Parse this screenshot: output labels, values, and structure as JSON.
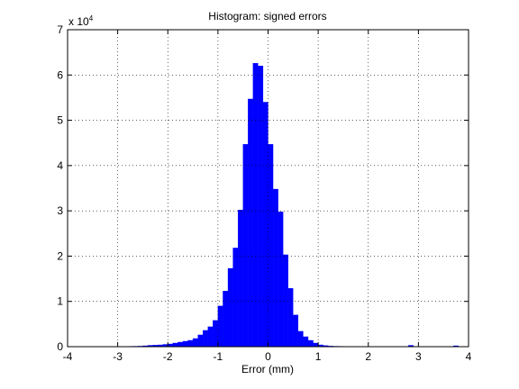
{
  "chart_data": {
    "type": "histogram",
    "title": "Histogram: signed errors",
    "x_label": "Error (mm)",
    "y_multiplier_base": "x 10",
    "y_multiplier_exponent": "4",
    "color": "#0000ff",
    "grid": true,
    "bins": [
      -4.0,
      -3.9,
      -3.8,
      -3.7,
      -3.6,
      -3.5,
      -3.4,
      -3.3,
      -3.2,
      -3.1,
      -3.0,
      -2.9,
      -2.8,
      -2.7,
      -2.6,
      -2.5,
      -2.4,
      -2.3,
      -2.2,
      -2.1,
      -2.0,
      -1.9,
      -1.8,
      -1.7,
      -1.6,
      -1.5,
      -1.4,
      -1.3,
      -1.2,
      -1.1,
      -1.0,
      -0.9,
      -0.8,
      -0.7,
      -0.6,
      -0.5,
      -0.4,
      -0.3,
      -0.2,
      -0.1,
      0.0,
      0.1,
      0.2,
      0.3,
      0.4,
      0.5,
      0.6,
      0.7,
      0.8,
      0.9,
      1.0,
      1.1,
      1.2,
      1.3,
      1.4,
      1.5,
      1.6,
      1.7,
      1.8,
      1.9,
      2.0,
      2.1,
      2.2,
      2.3,
      2.4,
      2.5,
      2.6,
      2.7,
      2.8,
      2.9,
      3.0,
      3.1,
      3.2,
      3.3,
      3.4,
      3.5,
      3.6,
      3.7,
      3.8,
      3.9,
      4.0
    ],
    "values": [
      20,
      20,
      20,
      20,
      30,
      30,
      30,
      30,
      40,
      50,
      60,
      70,
      80,
      100,
      120,
      200,
      300,
      350,
      400,
      500,
      600,
      800,
      1000,
      1200,
      1400,
      1800,
      2600,
      3600,
      4400,
      5800,
      9000,
      12300,
      17300,
      21800,
      30200,
      44700,
      54700,
      62600,
      62000,
      54000,
      44700,
      34800,
      29800,
      20300,
      12900,
      7000,
      3400,
      2200,
      1400,
      800,
      400,
      250,
      150,
      100,
      80,
      60,
      50,
      40,
      30,
      30,
      30,
      30,
      20,
      20,
      20,
      20,
      20,
      20,
      300,
      20,
      20,
      20,
      20,
      20,
      20,
      20,
      20,
      200,
      10,
      10
    ],
    "xlim": [
      -4,
      4
    ],
    "xticks": [
      -4,
      -3,
      -2,
      -1,
      0,
      1,
      2,
      3,
      4
    ],
    "ylim": [
      0,
      70000
    ],
    "yticks": [
      0,
      {
        "value": 10000,
        "label": "1"
      },
      {
        "value": 20000,
        "label": "2"
      },
      {
        "value": 30000,
        "label": "3"
      },
      {
        "value": 40000,
        "label": "4"
      },
      {
        "value": 50000,
        "label": "5"
      },
      {
        "value": 60000,
        "label": "6"
      },
      {
        "value": 70000,
        "label": "7"
      }
    ]
  }
}
